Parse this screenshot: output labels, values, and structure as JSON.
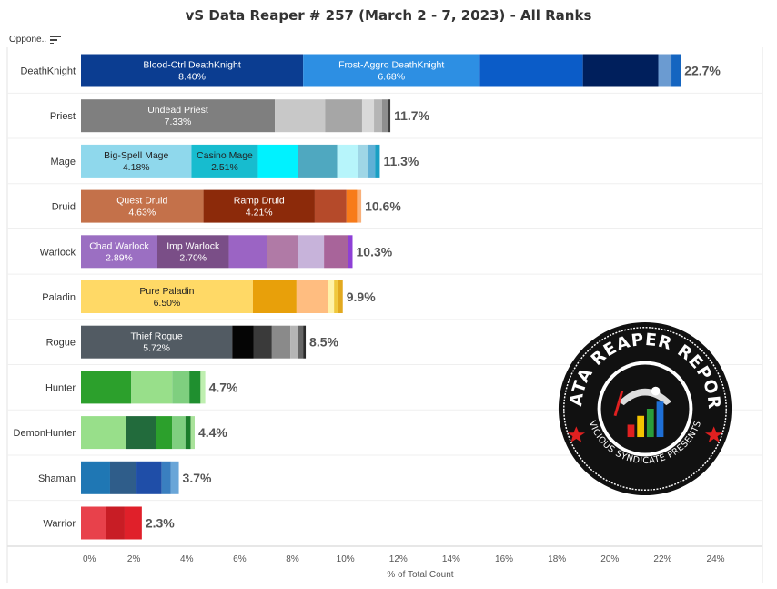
{
  "title": "vS Data Reaper # 257 (March 2 - 7, 2023) - All Ranks",
  "sort_header": "Oppone..",
  "logo": {
    "text_top": "DATA REAPER REPORT",
    "text_bottom": "VICIOUS SYNDICATE PRESENTS"
  },
  "chart_data": {
    "type": "bar",
    "orientation": "horizontal",
    "stacked": true,
    "title": "vS Data Reaper # 257 (March 2 - 7, 2023) - All Ranks",
    "xlabel": "% of Total Count",
    "ylabel": "Oppone..",
    "xlim": [
      0,
      24
    ],
    "xticks": [
      "0%",
      "2%",
      "4%",
      "6%",
      "8%",
      "10%",
      "12%",
      "14%",
      "16%",
      "18%",
      "20%",
      "22%",
      "24%"
    ],
    "grid": true,
    "categories": [
      {
        "name": "DeathKnight",
        "total_label": "22.7%",
        "segments": [
          {
            "label": "Blood-Ctrl DeathKnight",
            "value_label": "8.40%",
            "value": 8.4,
            "color": "#0b3d91",
            "text_color": "#ffffff"
          },
          {
            "label": "Frost-Aggro DeathKnight",
            "value_label": "6.68%",
            "value": 6.68,
            "color": "#2d8fe3",
            "text_color": "#ffffff"
          },
          {
            "value": 3.9,
            "color": "#0b5cc8"
          },
          {
            "value": 2.85,
            "color": "#001f5c"
          },
          {
            "value": 0.5,
            "color": "#6b9bd1"
          },
          {
            "value": 0.35,
            "color": "#1565c0"
          }
        ]
      },
      {
        "name": "Priest",
        "total_label": "11.7%",
        "segments": [
          {
            "label": "Undead Priest",
            "value_label": "7.33%",
            "value": 7.33,
            "color": "#7f7f7f",
            "text_color": "#ffffff"
          },
          {
            "value": 1.9,
            "color": "#c8c8c8"
          },
          {
            "value": 1.4,
            "color": "#a6a6a6"
          },
          {
            "value": 0.45,
            "color": "#d9d9d9"
          },
          {
            "value": 0.3,
            "color": "#b5b5b5"
          },
          {
            "value": 0.22,
            "color": "#8f8f8f"
          },
          {
            "value": 0.1,
            "color": "#3f3f3f"
          }
        ]
      },
      {
        "name": "Mage",
        "total_label": "11.3%",
        "segments": [
          {
            "label": "Big-Spell Mage",
            "value_label": "4.18%",
            "value": 4.18,
            "color": "#8fd8ec",
            "text_color": "#222222"
          },
          {
            "label": "Casino Mage",
            "value_label": "2.51%",
            "value": 2.51,
            "color": "#17bccf",
            "text_color": "#222222"
          },
          {
            "value": 1.5,
            "color": "#00f2ff"
          },
          {
            "value": 1.5,
            "color": "#4fa8c0"
          },
          {
            "value": 0.8,
            "color": "#b7f5fb"
          },
          {
            "value": 0.35,
            "color": "#9fd6e6"
          },
          {
            "value": 0.28,
            "color": "#5fb0d6"
          },
          {
            "value": 0.18,
            "color": "#1a9fc4"
          }
        ]
      },
      {
        "name": "Druid",
        "total_label": "10.6%",
        "segments": [
          {
            "label": "Quest Druid",
            "value_label": "4.63%",
            "value": 4.63,
            "color": "#c4714a",
            "text_color": "#ffffff"
          },
          {
            "label": "Ramp Druid",
            "value_label": "4.21%",
            "value": 4.21,
            "color": "#8c2a0a",
            "text_color": "#ffffff"
          },
          {
            "value": 1.2,
            "color": "#b54a2a"
          },
          {
            "value": 0.4,
            "color": "#f77b1a"
          },
          {
            "value": 0.16,
            "color": "#f9b07a"
          }
        ]
      },
      {
        "name": "Warlock",
        "total_label": "10.3%",
        "segments": [
          {
            "label": "Chad Warlock",
            "value_label": "2.89%",
            "value": 2.89,
            "color": "#9b6fc2",
            "text_color": "#ffffff"
          },
          {
            "label": "Imp Warlock",
            "value_label": "2.70%",
            "value": 2.7,
            "color": "#7a4e87",
            "text_color": "#ffffff"
          },
          {
            "value": 1.45,
            "color": "#9b64c4"
          },
          {
            "value": 1.15,
            "color": "#b07aa6"
          },
          {
            "value": 1.0,
            "color": "#c7b3da"
          },
          {
            "value": 0.9,
            "color": "#a8649a"
          },
          {
            "value": 0.18,
            "color": "#8e3fd6"
          }
        ]
      },
      {
        "name": "Paladin",
        "total_label": "9.9%",
        "segments": [
          {
            "label": "Pure Paladin",
            "value_label": "6.50%",
            "value": 6.5,
            "color": "#ffd966",
            "text_color": "#222222"
          },
          {
            "value": 1.65,
            "color": "#e8a00a"
          },
          {
            "value": 1.2,
            "color": "#ffbd80"
          },
          {
            "value": 0.22,
            "color": "#fff2a8"
          },
          {
            "value": 0.13,
            "color": "#f0c83c"
          },
          {
            "value": 0.2,
            "color": "#e2a91f"
          }
        ]
      },
      {
        "name": "Rogue",
        "total_label": "8.5%",
        "segments": [
          {
            "label": "Thief Rogue",
            "value_label": "5.72%",
            "value": 5.72,
            "color": "#525b63",
            "text_color": "#ffffff"
          },
          {
            "value": 0.8,
            "color": "#050505"
          },
          {
            "value": 0.7,
            "color": "#3a3a3a"
          },
          {
            "value": 0.7,
            "color": "#8a8a8a"
          },
          {
            "value": 0.28,
            "color": "#b5b5b5"
          },
          {
            "value": 0.2,
            "color": "#666666"
          },
          {
            "value": 0.1,
            "color": "#2a2a2a"
          }
        ]
      },
      {
        "name": "Hunter",
        "total_label": "4.7%",
        "segments": [
          {
            "value": 1.9,
            "color": "#2ca02c"
          },
          {
            "value": 1.55,
            "color": "#98df8a"
          },
          {
            "value": 0.65,
            "color": "#7fcf7f"
          },
          {
            "value": 0.42,
            "color": "#1f8f2f"
          },
          {
            "value": 0.18,
            "color": "#bfefb0"
          }
        ]
      },
      {
        "name": "DemonHunter",
        "total_label": "4.4%",
        "segments": [
          {
            "value": 1.7,
            "color": "#98df8a"
          },
          {
            "value": 1.15,
            "color": "#226b3c"
          },
          {
            "value": 0.6,
            "color": "#2ca02c"
          },
          {
            "value": 0.5,
            "color": "#7fcf7f"
          },
          {
            "value": 0.2,
            "color": "#1a7d2a"
          },
          {
            "value": 0.15,
            "color": "#a9e29a"
          }
        ]
      },
      {
        "name": "Shaman",
        "total_label": "3.7%",
        "segments": [
          {
            "value": 1.1,
            "color": "#1f77b4"
          },
          {
            "value": 1.0,
            "color": "#2f5d8a"
          },
          {
            "value": 0.95,
            "color": "#1f4ea8"
          },
          {
            "value": 0.35,
            "color": "#3a7fc0"
          },
          {
            "value": 0.3,
            "color": "#6aa6d8"
          }
        ]
      },
      {
        "name": "Warrior",
        "total_label": "2.3%",
        "segments": [
          {
            "value": 0.95,
            "color": "#e8414b"
          },
          {
            "value": 0.7,
            "color": "#c81d25"
          },
          {
            "value": 0.65,
            "color": "#e0202a"
          }
        ]
      }
    ]
  }
}
